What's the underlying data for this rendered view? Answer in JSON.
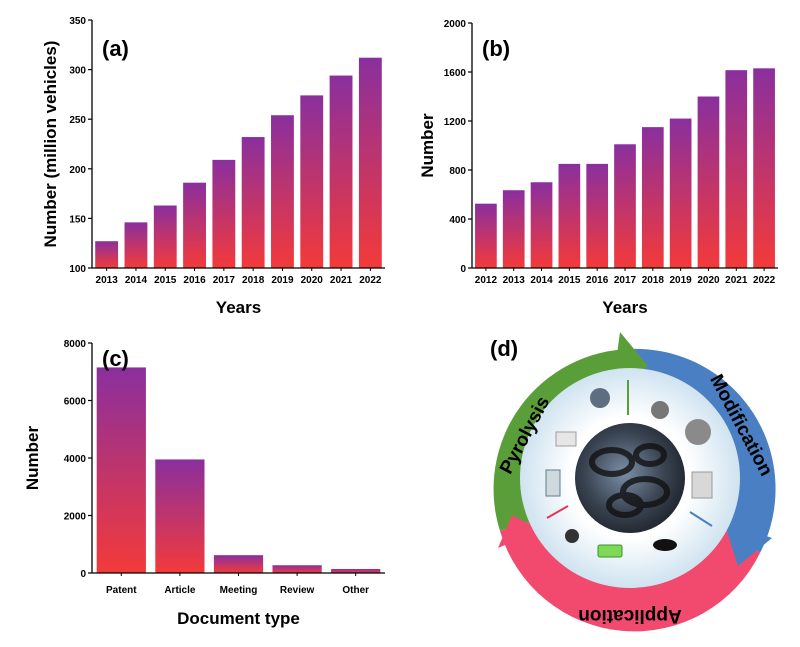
{
  "chart_data": [
    {
      "panel": "(a)",
      "type": "bar",
      "categories": [
        "2013",
        "2014",
        "2015",
        "2016",
        "2017",
        "2018",
        "2019",
        "2020",
        "2021",
        "2022"
      ],
      "values": [
        127,
        146,
        163,
        186,
        209,
        232,
        254,
        274,
        294,
        312
      ],
      "xlabel": "Years",
      "ylabel": "Number (million vehicles)",
      "ylim": [
        100,
        350
      ],
      "yticks": [
        100,
        150,
        200,
        250,
        300,
        350
      ]
    },
    {
      "panel": "(b)",
      "type": "bar",
      "categories": [
        "2012",
        "2013",
        "2014",
        "2015",
        "2016",
        "2017",
        "2018",
        "2019",
        "2020",
        "2021",
        "2022"
      ],
      "values": [
        525,
        635,
        700,
        850,
        850,
        1010,
        1150,
        1220,
        1400,
        1615,
        1630
      ],
      "xlabel": "Years",
      "ylabel": "Number",
      "ylim": [
        0,
        2000
      ],
      "yticks": [
        0,
        400,
        800,
        1200,
        1600,
        2000
      ]
    },
    {
      "panel": "(c)",
      "type": "bar",
      "categories": [
        "Patent",
        "Article",
        "Meeting",
        "Review",
        "Other"
      ],
      "values": [
        7150,
        3950,
        620,
        270,
        140
      ],
      "xlabel": "Document type",
      "ylabel": "Number",
      "ylim": [
        0,
        8000
      ],
      "yticks": [
        0,
        2000,
        4000,
        6000,
        8000
      ]
    }
  ],
  "diagram": {
    "panel": "(d)",
    "segments": [
      "Pyrolysis",
      "Modification",
      "Application"
    ],
    "colors": {
      "pyrolysis": "#5a9e3a",
      "modification": "#4a7fc4",
      "application": "#e8345a"
    }
  },
  "colors": {
    "bar_top": "#8a2f9e",
    "bar_bottom": "#f33a3a"
  }
}
